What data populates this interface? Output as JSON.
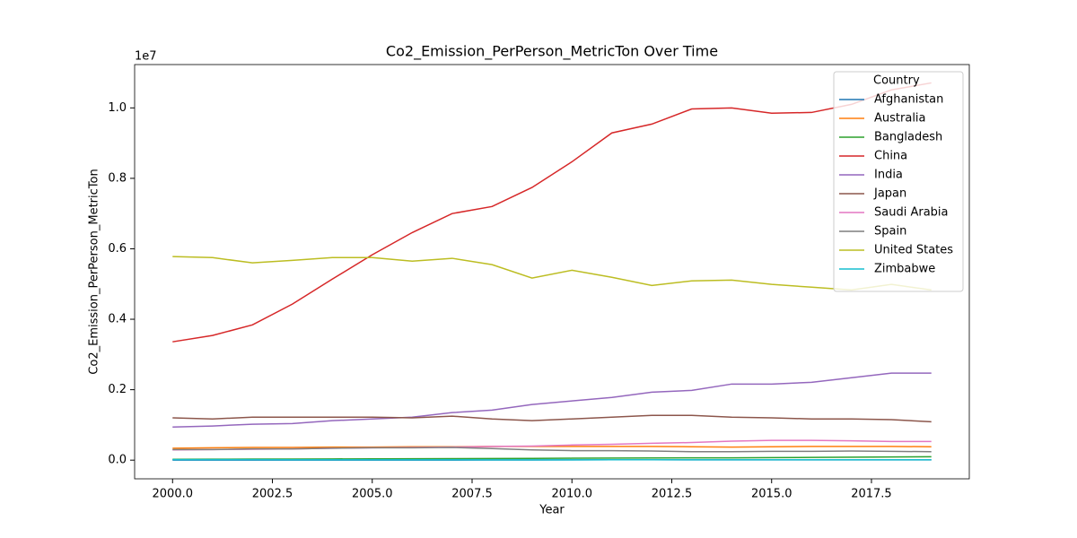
{
  "chart_data": {
    "type": "line",
    "title": "Co2_Emission_PerPerson_MetricTon Over Time",
    "x_label": "Year",
    "y_label": "Co2_Emission_PerPerson_MetricTon",
    "y_offset_label": "1e7",
    "legend_title": "Country",
    "legend": "upper right",
    "x": [
      2000,
      2001,
      2002,
      2003,
      2004,
      2005,
      2006,
      2007,
      2008,
      2009,
      2010,
      2011,
      2012,
      2013,
      2014,
      2015,
      2016,
      2017,
      2018,
      2019
    ],
    "xlim": [
      1999.05,
      2019.95
    ],
    "xticks": [
      {
        "value": 2000,
        "label": "2000.0"
      },
      {
        "value": 2002.5,
        "label": "2002.5"
      },
      {
        "value": 2005,
        "label": "2005.0"
      },
      {
        "value": 2007.5,
        "label": "2007.5"
      },
      {
        "value": 2010,
        "label": "2010.0"
      },
      {
        "value": 2012.5,
        "label": "2012.5"
      },
      {
        "value": 2015,
        "label": "2015.0"
      },
      {
        "value": 2017.5,
        "label": "2017.5"
      }
    ],
    "ylim": [
      -0.053,
      1.123
    ],
    "yticks": [
      {
        "value": 0,
        "label": "0.0"
      },
      {
        "value": 0.2,
        "label": "0.2"
      },
      {
        "value": 0.4,
        "label": "0.4"
      },
      {
        "value": 0.6,
        "label": "0.6"
      },
      {
        "value": 0.8,
        "label": "0.8"
      },
      {
        "value": 1.0,
        "label": "1.0"
      }
    ],
    "series": [
      {
        "name": "Afghanistan",
        "color": "#1f77b4",
        "values": [
          0.0001,
          0.0001,
          0.0001,
          0.0001,
          0.0001,
          0.0001,
          0.0001,
          0.0002,
          0.0004,
          0.0006,
          0.0008,
          0.0012,
          0.001,
          0.0009,
          0.0008,
          0.0008,
          0.0008,
          0.0008,
          0.0008,
          0.0008
        ]
      },
      {
        "name": "Australia",
        "color": "#ff7f0e",
        "values": [
          0.034,
          0.035,
          0.036,
          0.036,
          0.037,
          0.037,
          0.038,
          0.038,
          0.039,
          0.039,
          0.039,
          0.039,
          0.039,
          0.038,
          0.037,
          0.038,
          0.039,
          0.039,
          0.039,
          0.038
        ]
      },
      {
        "name": "Bangladesh",
        "color": "#2ca02c",
        "values": [
          0.0025,
          0.0027,
          0.0029,
          0.0031,
          0.0034,
          0.0037,
          0.004,
          0.0043,
          0.0046,
          0.005,
          0.0054,
          0.0058,
          0.0061,
          0.0064,
          0.0066,
          0.0072,
          0.0078,
          0.0085,
          0.0092,
          0.0097
        ]
      },
      {
        "name": "China",
        "color": "#d62728",
        "values": [
          0.336,
          0.354,
          0.384,
          0.443,
          0.514,
          0.583,
          0.646,
          0.7,
          0.72,
          0.774,
          0.847,
          0.929,
          0.954,
          0.997,
          1.0,
          0.985,
          0.987,
          1.01,
          1.051,
          1.071
        ]
      },
      {
        "name": "India",
        "color": "#9467bd",
        "values": [
          0.094,
          0.097,
          0.102,
          0.104,
          0.112,
          0.117,
          0.122,
          0.135,
          0.142,
          0.158,
          0.168,
          0.178,
          0.193,
          0.198,
          0.216,
          0.216,
          0.221,
          0.234,
          0.247,
          0.247
        ]
      },
      {
        "name": "Japan",
        "color": "#8c564b",
        "values": [
          0.12,
          0.117,
          0.122,
          0.122,
          0.122,
          0.122,
          0.12,
          0.125,
          0.117,
          0.112,
          0.117,
          0.122,
          0.127,
          0.127,
          0.122,
          0.12,
          0.117,
          0.117,
          0.115,
          0.109
        ]
      },
      {
        "name": "Saudi Arabia",
        "color": "#e377c2",
        "values": [
          0.029,
          0.03,
          0.031,
          0.032,
          0.034,
          0.035,
          0.036,
          0.037,
          0.039,
          0.04,
          0.043,
          0.045,
          0.048,
          0.05,
          0.054,
          0.056,
          0.056,
          0.055,
          0.053,
          0.053
        ]
      },
      {
        "name": "Spain",
        "color": "#7f7f7f",
        "values": [
          0.03,
          0.03,
          0.032,
          0.032,
          0.034,
          0.035,
          0.035,
          0.036,
          0.033,
          0.029,
          0.027,
          0.027,
          0.026,
          0.024,
          0.024,
          0.025,
          0.025,
          0.026,
          0.025,
          0.024
        ]
      },
      {
        "name": "United States",
        "color": "#bcbd22",
        "values": [
          0.578,
          0.575,
          0.56,
          0.567,
          0.575,
          0.575,
          0.565,
          0.573,
          0.555,
          0.517,
          0.539,
          0.519,
          0.496,
          0.509,
          0.511,
          0.499,
          0.491,
          0.483,
          0.499,
          0.483
        ]
      },
      {
        "name": "Zimbabwe",
        "color": "#17becf",
        "values": [
          0.0015,
          0.0014,
          0.0013,
          0.0012,
          0.0011,
          0.0011,
          0.001,
          0.001,
          0.0008,
          0.0007,
          0.0009,
          0.0011,
          0.0012,
          0.0012,
          0.0012,
          0.0011,
          0.001,
          0.0011,
          0.0011,
          0.001
        ]
      }
    ]
  }
}
